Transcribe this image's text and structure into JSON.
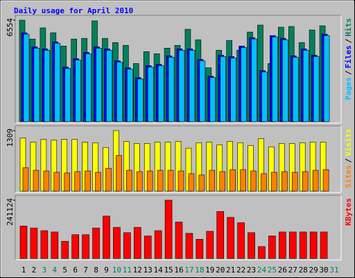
{
  "chart_data": [
    {
      "type": "bar",
      "title": "Daily usage for April 2010",
      "title_color": "#0000ff",
      "legend_separator": "/",
      "series": [
        {
          "name": "Hits",
          "color": "#00805c",
          "values": [
            6554,
            5334,
            6057,
            5740,
            4882,
            5334,
            5379,
            6509,
            5379,
            5108,
            4927,
            3752,
            4520,
            4384,
            4746,
            4927,
            5966,
            5288,
            3480,
            4610,
            5243,
            4610,
            5786,
            6238,
            3752,
            6102,
            6147,
            5108,
            5921,
            6192,
            null
          ]
        },
        {
          "name": "Files",
          "color": "#0000ff",
          "values": [
            5740,
            4836,
            4701,
            5153,
            3526,
            4068,
            4475,
            4836,
            4701,
            3932,
            3480,
            2848,
            3616,
            3706,
            4249,
            4701,
            4701,
            4023,
            2938,
            4294,
            4204,
            4882,
            5424,
            3300,
            5560,
            5379,
            4249,
            4701,
            4294,
            5650,
            null
          ]
        },
        {
          "name": "Pages",
          "color": "#00c0ff",
          "values": [
            5650,
            4746,
            4610,
            5062,
            3436,
            3977,
            4384,
            4746,
            4610,
            3842,
            3390,
            2758,
            3526,
            3616,
            4158,
            4610,
            4610,
            3932,
            2848,
            4204,
            4113,
            4792,
            5334,
            3209,
            5470,
            5288,
            4158,
            4610,
            4204,
            5560,
            null
          ]
        }
      ],
      "ylim": [
        0,
        6554
      ],
      "yticks": [
        6554
      ]
    },
    {
      "type": "bar",
      "legend_separator": "/",
      "series": [
        {
          "name": "Visits",
          "color": "#ffff00",
          "values": [
            1149,
            1061,
            1120,
            1105,
            1120,
            1120,
            1061,
            1047,
            945,
            1309,
            1076,
            1032,
            1032,
            1061,
            1061,
            1076,
            931,
            1047,
            1061,
            1003,
            1076,
            1047,
            989,
            1134,
            960,
            1032,
            1032,
            1047,
            1061,
            1061,
            null
          ]
        },
        {
          "name": "Sites",
          "color": "#ff8000",
          "values": [
            509,
            451,
            436,
            407,
            393,
            422,
            436,
            407,
            494,
            771,
            451,
            422,
            436,
            451,
            451,
            436,
            378,
            349,
            451,
            422,
            465,
            465,
            436,
            378,
            407,
            422,
            407,
            422,
            451,
            465,
            null
          ]
        }
      ],
      "ylim": [
        0,
        1309
      ],
      "yticks": [
        1309
      ]
    },
    {
      "type": "bar",
      "series": [
        {
          "name": "KBytes",
          "color": "#ff0000",
          "values": [
            134260,
            126040,
            115080,
            109600,
            71240,
            98640,
            98640,
            126040,
            175360,
            128780,
            106860,
            128780,
            93160,
            115080,
            241124,
            150700,
            104120,
            79460,
            112340,
            194540,
            169880,
            147960,
            106860,
            49320,
            93160,
            109600,
            109600,
            109600,
            109600,
            109600,
            null
          ]
        }
      ],
      "ylim": [
        0,
        241124
      ],
      "yticks": [
        241124
      ],
      "categories": [
        "1",
        "2",
        "3",
        "4",
        "5",
        "6",
        "7",
        "8",
        "9",
        "10",
        "11",
        "12",
        "13",
        "14",
        "15",
        "16",
        "17",
        "18",
        "19",
        "20",
        "21",
        "22",
        "23",
        "24",
        "25",
        "26",
        "27",
        "28",
        "29",
        "30",
        "31"
      ],
      "category_colors": [
        "#000000",
        "#000000",
        "#00805c",
        "#00805c",
        "#000000",
        "#000000",
        "#000000",
        "#000000",
        "#000000",
        "#00805c",
        "#00805c",
        "#000000",
        "#000000",
        "#000000",
        "#000000",
        "#000000",
        "#00805c",
        "#00805c",
        "#000000",
        "#000000",
        "#000000",
        "#000000",
        "#000000",
        "#00805c",
        "#00805c",
        "#000000",
        "#000000",
        "#000000",
        "#000000",
        "#000000",
        "#00805c"
      ]
    }
  ]
}
